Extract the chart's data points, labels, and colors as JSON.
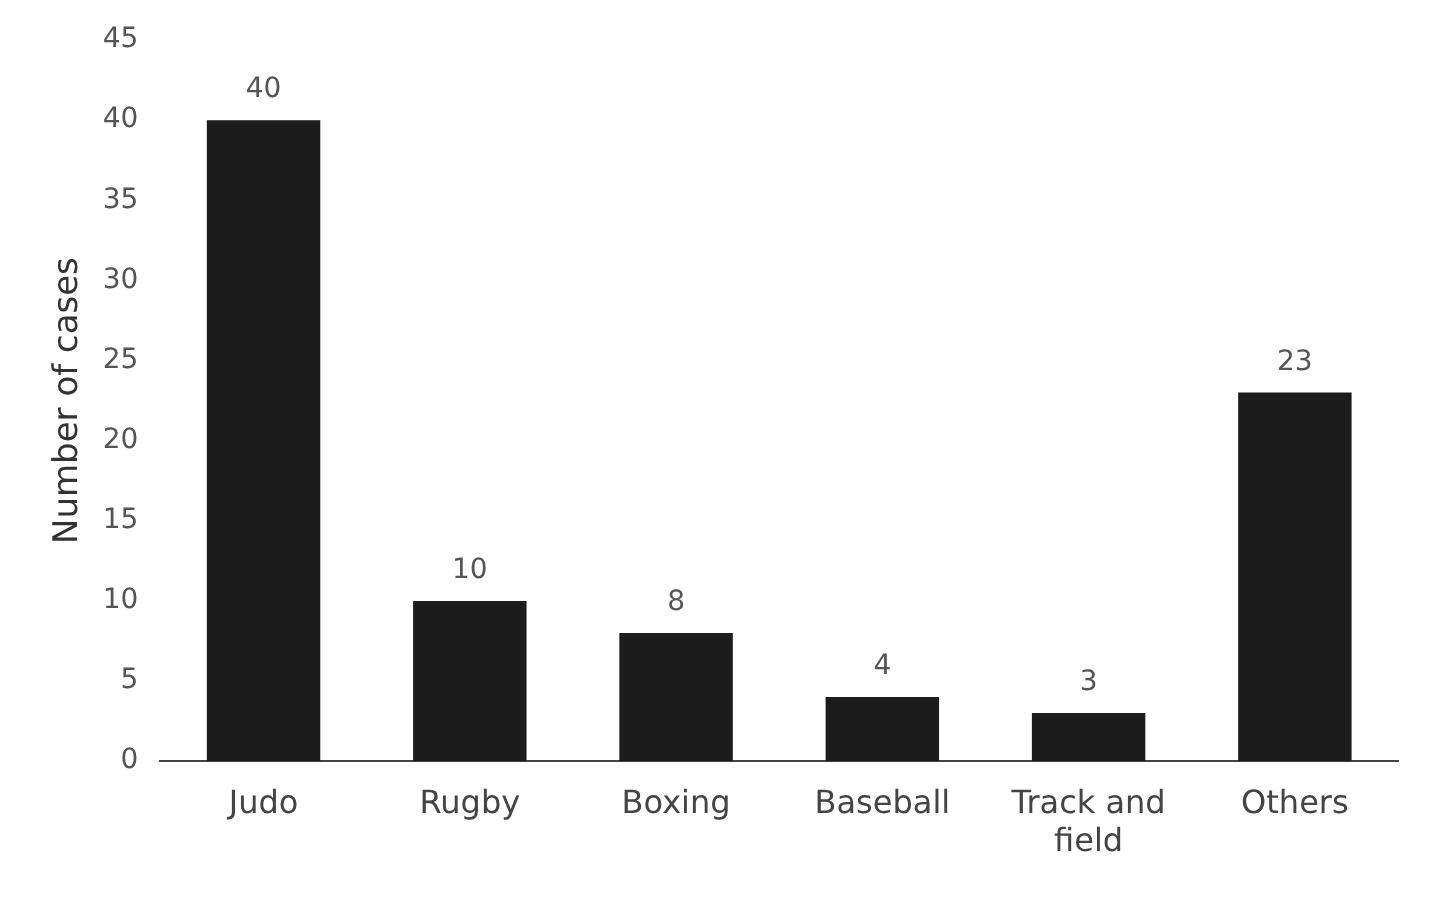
{
  "chart_data": {
    "type": "bar",
    "ylabel": "Number of cases",
    "categories": [
      "Judo",
      "Rugby",
      "Boxing",
      "Baseball",
      "Track and field",
      "Others"
    ],
    "values": [
      40,
      10,
      8,
      4,
      3,
      23
    ],
    "color": "#1c1c1c",
    "ylim": [
      0,
      45
    ],
    "yticks": [
      0,
      5,
      10,
      15,
      20,
      25,
      30,
      35,
      40,
      45
    ],
    "grid": false,
    "data_labels": true
  }
}
